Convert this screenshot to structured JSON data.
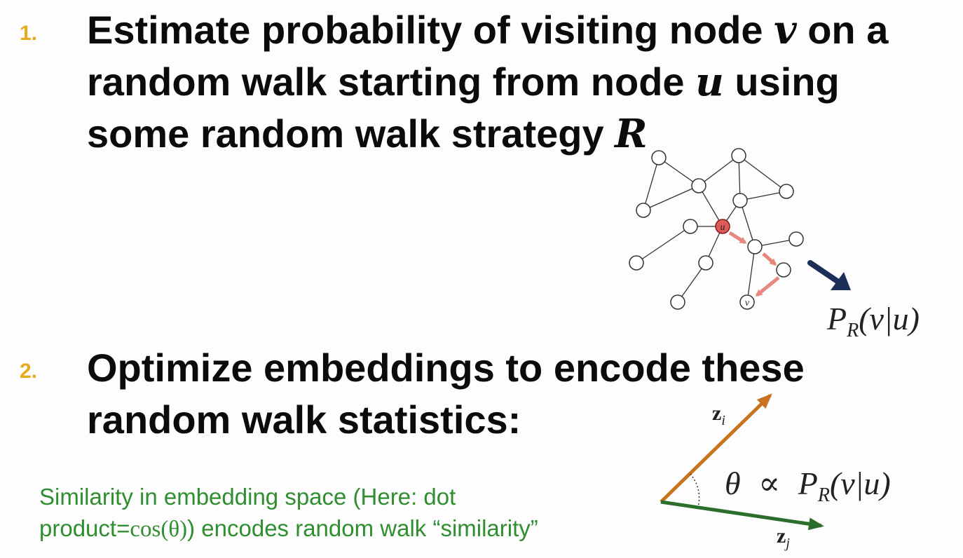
{
  "steps": [
    {
      "number": "1.",
      "lines": [
        {
          "pre": "Estimate probability of visiting node ",
          "var": "v",
          "post": " on a"
        },
        {
          "pre": "random walk starting from node ",
          "var": "u",
          "post": " using"
        },
        {
          "pre": "some random walk strategy ",
          "var": "R",
          "post": ""
        }
      ]
    },
    {
      "number": "2.",
      "lines": [
        {
          "pre": "Optimize embeddings to encode these",
          "var": "",
          "post": ""
        },
        {
          "pre": "random walk statistics:",
          "var": "",
          "post": ""
        }
      ]
    }
  ],
  "caption": {
    "line1": "Similarity in embedding space (Here: dot",
    "line2_pre": "product=",
    "line2_math": "cos(θ)",
    "line2_post": ") encodes random walk “similarity”"
  },
  "graph": {
    "start_node_label": "u",
    "end_node_label": "v",
    "result_formula": {
      "p": "P",
      "sub": "R",
      "args": "(v|u)"
    }
  },
  "vectors": {
    "zi": {
      "base": "z",
      "sub": "i"
    },
    "zj": {
      "base": "z",
      "sub": "j"
    },
    "angle_formula": {
      "theta": "θ",
      "prop": "∝",
      "p": "P",
      "sub": "R",
      "args": "(v|u)"
    }
  },
  "colors": {
    "number": "#e6ac1e",
    "caption": "#2f8f2f",
    "walk_edge": "#e8877d",
    "start_node": "#e05a5a",
    "big_arrow": "#1b2e57",
    "vector_zi": "#c8741f",
    "vector_zj": "#2b6e2b"
  }
}
